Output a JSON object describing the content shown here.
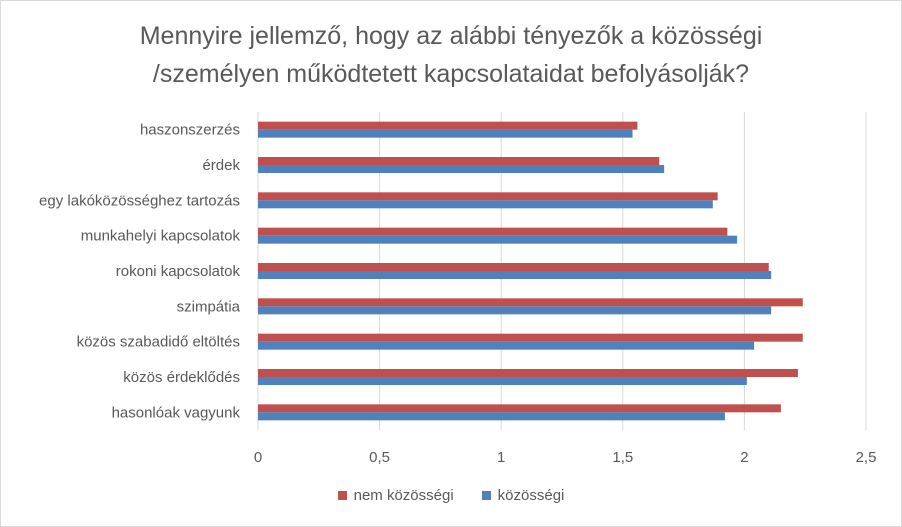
{
  "chart_data": {
    "type": "bar",
    "orientation": "horizontal",
    "title_lines": [
      "Mennyire jellemző, hogy az alábbi tényezők a közösségi",
      "/személyen működtetett kapcsolataidat befolyásolják?"
    ],
    "categories": [
      "haszonszerzés",
      "érdek",
      "egy lakóközösséghez tartozás",
      "munkahelyi kapcsolatok",
      "rokoni kapcsolatok",
      "szimpátia",
      "közös szabadidő eltöltés",
      "közös érdeklődés",
      "hasonlóak vagyunk"
    ],
    "series": [
      {
        "name": "nem közösségi",
        "color": "#c0504d",
        "values": [
          1.56,
          1.65,
          1.89,
          1.93,
          2.1,
          2.24,
          2.24,
          2.22,
          2.15
        ]
      },
      {
        "name": "közösségi",
        "color": "#4f81bd",
        "values": [
          1.54,
          1.67,
          1.87,
          1.97,
          2.11,
          2.11,
          2.04,
          2.01,
          1.92
        ]
      }
    ],
    "xlim": [
      0,
      2.5
    ],
    "xticks": [
      "0",
      "0,5",
      "1",
      "1,5",
      "2",
      "2,5"
    ],
    "xtick_values": [
      0,
      0.5,
      1,
      1.5,
      2,
      2.5
    ],
    "grid": "vertical",
    "legend_position": "bottom",
    "gridline_color": "#d9d9d9"
  }
}
